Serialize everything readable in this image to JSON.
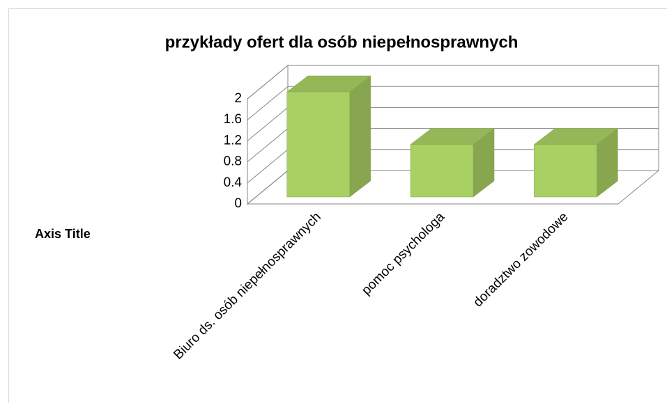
{
  "chart_data": {
    "type": "bar3d",
    "title": "przykłady ofert dla osób niepełnosprawnych",
    "y_axis_title": "Axis Title",
    "categories": [
      "Biuro ds. osób niepełnosprawnych",
      "pomoc psychologa",
      "doradztwo zowodowe"
    ],
    "values": [
      2,
      1,
      1
    ],
    "color": "#a9d063",
    "ylim": [
      0,
      2
    ],
    "yticks": [
      0,
      0.4,
      0.8,
      1.2,
      1.6,
      2
    ],
    "grid": true
  }
}
